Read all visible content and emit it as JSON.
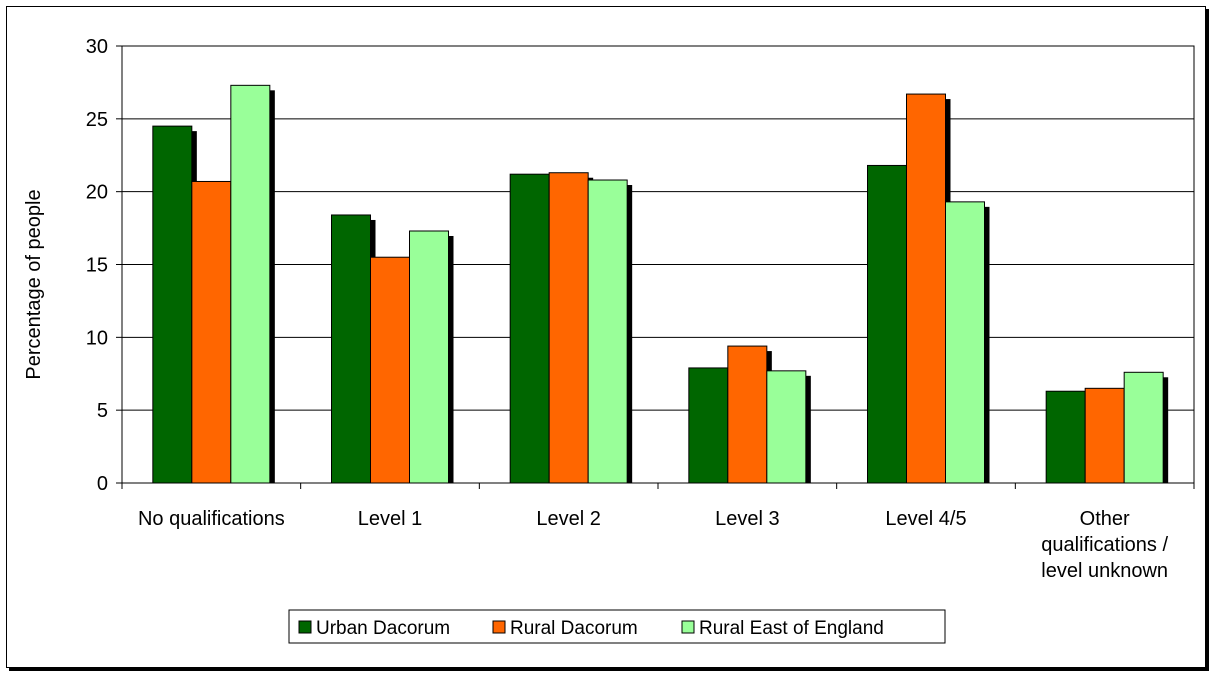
{
  "chart_data": {
    "type": "bar",
    "ylabel": "Percentage of people",
    "xlabel": "",
    "ylim": [
      0,
      30
    ],
    "yticks": [
      0,
      5,
      10,
      15,
      20,
      25,
      30
    ],
    "grid": true,
    "legend_position": "bottom",
    "categories": [
      [
        "No qualifications"
      ],
      [
        "Level 1"
      ],
      [
        "Level 2"
      ],
      [
        "Level 3"
      ],
      [
        "Level 4/5"
      ],
      [
        "Other",
        "qualifications /",
        "level unknown"
      ]
    ],
    "series": [
      {
        "name": "Urban Dacorum",
        "color": "#006600",
        "values": [
          24.5,
          18.4,
          21.2,
          7.9,
          21.8,
          6.3
        ]
      },
      {
        "name": "Rural Dacorum",
        "color": "#ff6600",
        "values": [
          20.7,
          15.5,
          21.3,
          9.4,
          26.7,
          6.5
        ]
      },
      {
        "name": "Rural East of England",
        "color": "#99ff99",
        "values": [
          27.3,
          17.3,
          20.8,
          7.7,
          19.3,
          7.6
        ]
      }
    ]
  }
}
